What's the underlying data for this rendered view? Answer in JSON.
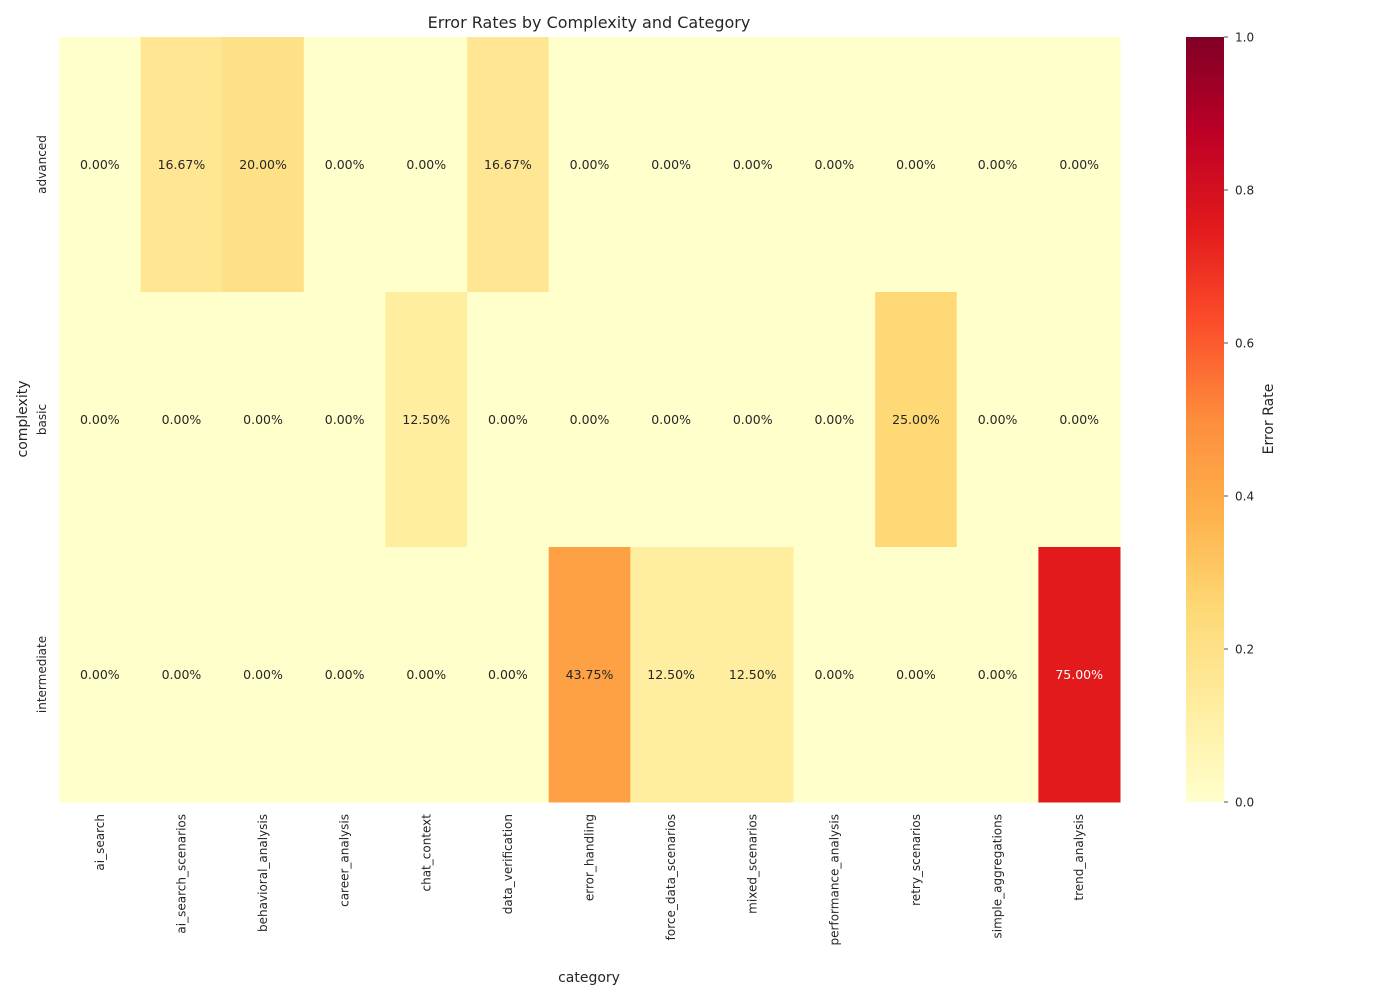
{
  "chart_data": {
    "type": "heatmap",
    "title": "Error Rates by Complexity and Category",
    "xlabel": "category",
    "ylabel": "complexity",
    "x": [
      "ai_search",
      "ai_search_scenarios",
      "behavioral_analysis",
      "career_analysis",
      "chat_context",
      "data_verification",
      "error_handling",
      "force_data_scenarios",
      "mixed_scenarios",
      "performance_analysis",
      "retry_scenarios",
      "simple_aggregations",
      "trend_analysis"
    ],
    "y": [
      "advanced",
      "basic",
      "intermediate"
    ],
    "values": [
      [
        0.0,
        0.1667,
        0.2,
        0.0,
        0.0,
        0.1667,
        0.0,
        0.0,
        0.0,
        0.0,
        0.0,
        0.0,
        0.0
      ],
      [
        0.0,
        0.0,
        0.0,
        0.0,
        0.125,
        0.0,
        0.0,
        0.0,
        0.0,
        0.0,
        0.25,
        0.0,
        0.0
      ],
      [
        0.0,
        0.0,
        0.0,
        0.0,
        0.0,
        0.0,
        0.4375,
        0.125,
        0.125,
        0.0,
        0.0,
        0.0,
        0.75
      ]
    ],
    "annotations": [
      [
        "0.00%",
        "16.67%",
        "20.00%",
        "0.00%",
        "0.00%",
        "16.67%",
        "0.00%",
        "0.00%",
        "0.00%",
        "0.00%",
        "0.00%",
        "0.00%",
        "0.00%"
      ],
      [
        "0.00%",
        "0.00%",
        "0.00%",
        "0.00%",
        "12.50%",
        "0.00%",
        "0.00%",
        "0.00%",
        "0.00%",
        "0.00%",
        "25.00%",
        "0.00%",
        "0.00%"
      ],
      [
        "0.00%",
        "0.00%",
        "0.00%",
        "0.00%",
        "0.00%",
        "0.00%",
        "43.75%",
        "12.50%",
        "12.50%",
        "0.00%",
        "0.00%",
        "0.00%",
        "75.00%"
      ]
    ],
    "colormap": "YlOrRd",
    "vmin": 0.0,
    "vmax": 1.0,
    "colorbar": {
      "label": "Error Rate",
      "ticks": [
        0.0,
        0.2,
        0.4,
        0.6,
        0.8,
        1.0
      ],
      "tick_labels": [
        "0.0",
        "0.2",
        "0.4",
        "0.6",
        "0.8",
        "1.0"
      ]
    },
    "grid": false
  }
}
